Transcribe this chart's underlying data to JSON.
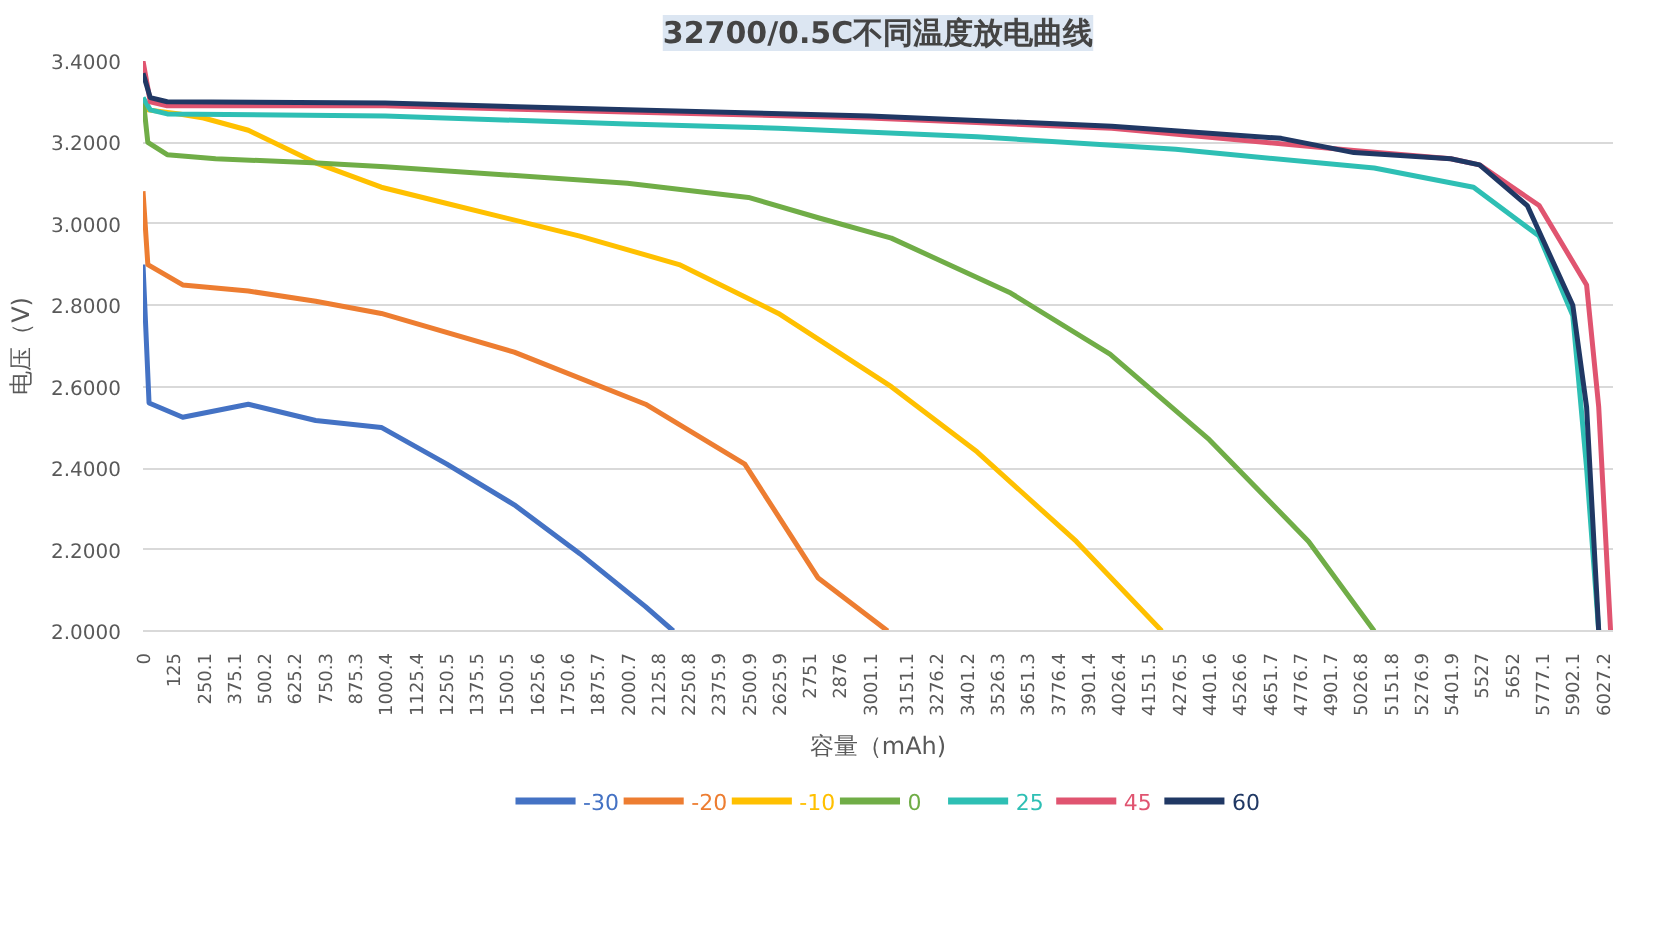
{
  "chart_data": {
    "type": "line",
    "title": "32700/0.5C不同温度放电曲线",
    "xlabel": "容量（mAh)",
    "ylabel": "电压（V)",
    "xlim": [
      0,
      6070
    ],
    "ylim": [
      2.0,
      3.4
    ],
    "xticks": [
      0,
      125,
      250.1,
      375.1,
      500.2,
      625.2,
      750.3,
      875.3,
      1000.4,
      1125.4,
      1250.5,
      1375.5,
      1500.5,
      1625.6,
      1750.6,
      1875.7,
      2000.7,
      2125.8,
      2250.8,
      2375.9,
      2500.9,
      2625.9,
      2751,
      2876,
      3001.1,
      3151.1,
      3276.2,
      3401.2,
      3526.3,
      3651.3,
      3776.4,
      3901.4,
      4026.4,
      4151.5,
      4276.5,
      4401.6,
      4526.6,
      4651.7,
      4776.7,
      4901.7,
      5026.8,
      5151.8,
      5276.9,
      5401.9,
      5527,
      5652,
      5777.1,
      5902.1,
      6027.2
    ],
    "yticks": [
      {
        "value": 2.0,
        "label": "2.0000"
      },
      {
        "value": 2.2,
        "label": "2.2000"
      },
      {
        "value": 2.4,
        "label": "2.4000"
      },
      {
        "value": 2.6,
        "label": "2.6000"
      },
      {
        "value": 2.8,
        "label": "2.8000"
      },
      {
        "value": 3.0,
        "label": "3.0000"
      },
      {
        "value": 3.2,
        "label": "3.2000"
      },
      {
        "value": 3.4,
        "label": "3.4000"
      }
    ],
    "grid": "y",
    "legend": "bottom",
    "marker": "none",
    "line_style": "solid",
    "series": [
      {
        "name": "-30",
        "color": "#4472c4",
        "x": [
          0,
          25,
          164,
          435,
          713,
          984,
          1255,
          1533,
          1804,
          2075,
          2190
        ],
        "values": [
          2.9,
          2.56,
          2.525,
          2.557,
          2.517,
          2.5,
          2.41,
          2.31,
          2.19,
          2.06,
          2.0
        ]
      },
      {
        "name": "-20",
        "color": "#ed7d31",
        "x": [
          0,
          20,
          164,
          435,
          713,
          984,
          1533,
          2075,
          2485,
          2788,
          3075
        ],
        "values": [
          3.08,
          2.9,
          2.85,
          2.835,
          2.81,
          2.78,
          2.685,
          2.557,
          2.41,
          2.13,
          2.0
        ]
      },
      {
        "name": "-10",
        "color": "#ffc000",
        "x": [
          0,
          20,
          150,
          250,
          435,
          713,
          984,
          1255,
          1804,
          2214,
          2624,
          3090,
          3444,
          3854,
          4207
        ],
        "values": [
          3.3,
          3.28,
          3.27,
          3.26,
          3.23,
          3.15,
          3.09,
          3.05,
          2.97,
          2.9,
          2.78,
          2.6,
          2.44,
          2.22,
          2.0
        ]
      },
      {
        "name": "0",
        "color": "#70ad47",
        "x": [
          0,
          20,
          100,
          300,
          700,
          1000,
          1500,
          2000,
          2500,
          2788,
          3090,
          3583,
          3993,
          4403,
          4813,
          5084
        ],
        "values": [
          3.31,
          3.2,
          3.17,
          3.16,
          3.15,
          3.14,
          3.12,
          3.1,
          3.065,
          3.015,
          2.965,
          2.83,
          2.68,
          2.47,
          2.22,
          2.0
        ]
      },
      {
        "name": "25",
        "color": "#2ebfb4",
        "x": [
          0,
          30,
          100,
          1000,
          2000,
          2624,
          3444,
          4264,
          5084,
          5494,
          5765,
          5904,
          5961,
          6011
        ],
        "values": [
          3.31,
          3.28,
          3.27,
          3.265,
          3.245,
          3.235,
          3.214,
          3.183,
          3.137,
          3.09,
          2.97,
          2.775,
          2.4,
          2.0
        ]
      },
      {
        "name": "45",
        "color": "#e05470",
        "x": [
          0,
          30,
          100,
          1000,
          2000,
          3000,
          4000,
          5000,
          5400,
          5519,
          5765,
          5961,
          6011,
          6060
        ],
        "values": [
          3.4,
          3.3,
          3.29,
          3.29,
          3.275,
          3.26,
          3.235,
          3.18,
          3.16,
          3.145,
          3.045,
          2.85,
          2.55,
          2.0
        ]
      },
      {
        "name": "60",
        "color": "#203864",
        "x": [
          0,
          30,
          100,
          1000,
          2000,
          3000,
          4000,
          4700,
          5000,
          5400,
          5519,
          5716,
          5904,
          5961,
          6011
        ],
        "values": [
          3.37,
          3.31,
          3.3,
          3.297,
          3.28,
          3.265,
          3.24,
          3.21,
          3.175,
          3.16,
          3.145,
          3.045,
          2.8,
          2.55,
          2.0
        ]
      }
    ]
  }
}
